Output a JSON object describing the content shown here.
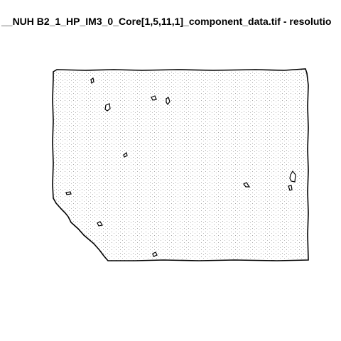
{
  "window": {
    "title": "__NUH B2_1_HP_IM3_0_Core[1,5,11,1]_component_data.tif - resolutio"
  },
  "figure": {
    "background_color": "#ffffff",
    "outline_color": "#000000",
    "stipple_color": "#888888"
  }
}
